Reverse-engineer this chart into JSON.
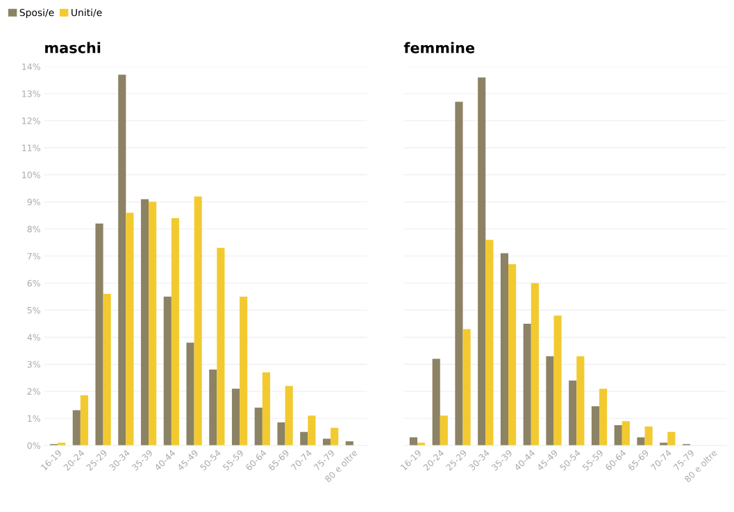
{
  "chart_data": [
    {
      "type": "bar",
      "title": "maschi",
      "categories": [
        "16-19",
        "20-24",
        "25-29",
        "30-34",
        "35-39",
        "40-44",
        "45-49",
        "50-54",
        "55-59",
        "60-64",
        "65-69",
        "70-74",
        "75-79",
        "80 e oltre"
      ],
      "series": [
        {
          "name": "Sposi/e",
          "color": "#8c8264",
          "values": [
            0.05,
            1.3,
            8.2,
            13.7,
            9.1,
            5.5,
            3.8,
            2.8,
            2.1,
            1.4,
            0.85,
            0.5,
            0.25,
            0.15
          ]
        },
        {
          "name": "Uniti/e",
          "color": "#f2ca30",
          "values": [
            0.1,
            1.85,
            5.6,
            8.6,
            9.0,
            8.4,
            9.2,
            7.3,
            5.5,
            2.7,
            2.2,
            1.1,
            0.65,
            0
          ]
        }
      ],
      "ylim": [
        0,
        14
      ],
      "yticks": [
        {
          "value": 0,
          "label": "0%"
        },
        {
          "value": 1,
          "label": "1%"
        },
        {
          "value": 2,
          "label": "2%"
        },
        {
          "value": 3,
          "label": "3%"
        },
        {
          "value": 4,
          "label": "4%"
        },
        {
          "value": 5,
          "label": "5%"
        },
        {
          "value": 6,
          "label": "6%"
        },
        {
          "value": 7,
          "label": "7%"
        },
        {
          "value": 8,
          "label": "8%"
        },
        {
          "value": 9,
          "label": "9%"
        },
        {
          "value": 10,
          "label": "10%"
        },
        {
          "value": 11,
          "label": "11%"
        },
        {
          "value": 12,
          "label": "12%"
        },
        {
          "value": 13,
          "label": "13%"
        },
        {
          "value": 14,
          "label": "14%"
        }
      ],
      "grid": "y",
      "legend": "top left"
    },
    {
      "type": "bar",
      "title": "femmine",
      "categories": [
        "16-19",
        "20-24",
        "25-29",
        "30-34",
        "35-39",
        "40-44",
        "45-49",
        "50-54",
        "55-59",
        "60-64",
        "65-69",
        "70-74",
        "75-79",
        "80 e oltre"
      ],
      "series": [
        {
          "color": "#8c8264",
          "values": [
            0.3,
            3.2,
            12.7,
            13.6,
            7.1,
            4.5,
            3.3,
            2.4,
            1.45,
            0.75,
            0.3,
            0.1,
            0.05,
            null
          ]
        },
        {
          "color": "#f2ca30",
          "values": [
            0.1,
            1.1,
            4.3,
            7.6,
            6.7,
            6.0,
            4.8,
            3.3,
            2.1,
            0.9,
            0.7,
            0.5,
            0,
            0
          ]
        }
      ],
      "ylim": [
        0,
        14
      ],
      "yticks": [
        0,
        1,
        2,
        3,
        4,
        5,
        6,
        7,
        8,
        9,
        10,
        11,
        12,
        13,
        14
      ],
      "grid": "y",
      "tick_labels": "x"
    }
  ]
}
